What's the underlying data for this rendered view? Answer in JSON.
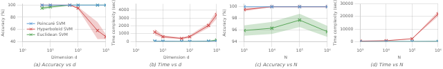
{
  "chart_data": [
    {
      "type": "line",
      "title": "(a) Accuracy vs d",
      "xlabel": "Dimension d",
      "ylabel": "Accuracy (%)",
      "x": [
        5,
        10,
        50,
        100,
        500,
        1000
      ],
      "series": [
        {
          "name": "Poincaré SVM",
          "color": "#5b9bd5",
          "values": [
            100,
            100,
            100,
            100,
            100,
            100
          ],
          "lo": [
            100,
            100,
            100,
            100,
            100,
            100
          ],
          "hi": [
            100,
            100,
            100,
            100,
            100,
            100
          ]
        },
        {
          "name": "Hyperboloid SVM",
          "color": "#d05050",
          "values": [
            100,
            100,
            100,
            95,
            58,
            48
          ],
          "lo": [
            100,
            100,
            100,
            93,
            44,
            44
          ],
          "hi": [
            100,
            100,
            100,
            97,
            72,
            52
          ]
        },
        {
          "name": "Euclidean SVM",
          "color": "#59a659",
          "values": [
            95,
            97,
            100,
            100,
            100,
            100
          ],
          "lo": [
            92,
            95,
            99,
            99.5,
            99.5,
            99.5
          ],
          "hi": [
            98,
            99,
            100.5,
            100.5,
            100.5,
            100.5
          ]
        }
      ],
      "xlim": [
        1,
        1000
      ],
      "xticks": [
        {
          "value": 1,
          "label": "10⁰"
        },
        {
          "value": 10,
          "label": "10¹"
        },
        {
          "value": 100,
          "label": "10²"
        },
        {
          "value": 1000,
          "label": "10³"
        }
      ],
      "ylim": [
        40,
        102
      ],
      "yticks": [
        40,
        60,
        80,
        100
      ],
      "log": "x",
      "grid": true,
      "marker": "x",
      "legend": "lower left"
    },
    {
      "type": "line",
      "title": "(b) Time vs d",
      "xlabel": "Dimension d",
      "ylabel": "Time complexity (sec)",
      "x": [
        5,
        10,
        50,
        100,
        500,
        1000
      ],
      "series": [
        {
          "name": "Poincaré SVM",
          "color": "#5b9bd5",
          "values": [
            50,
            40,
            25,
            25,
            30,
            30
          ],
          "lo": [
            20,
            15,
            10,
            10,
            15,
            15
          ],
          "hi": [
            80,
            65,
            40,
            40,
            45,
            45
          ]
        },
        {
          "name": "Hyperboloid SVM",
          "color": "#d05050",
          "values": [
            1200,
            620,
            400,
            620,
            2050,
            3400
          ],
          "lo": [
            800,
            450,
            300,
            450,
            1750,
            2900
          ],
          "hi": [
            1600,
            800,
            510,
            800,
            2350,
            3900
          ]
        },
        {
          "name": "Euclidean SVM",
          "color": "#59a659",
          "values": [
            15,
            8,
            5,
            5,
            40,
            200
          ],
          "lo": [
            5,
            3,
            2,
            2,
            20,
            100
          ],
          "hi": [
            25,
            13,
            8,
            8,
            60,
            300
          ]
        }
      ],
      "xlim": [
        1,
        1000
      ],
      "xticks": [
        {
          "value": 1,
          "label": "10⁰"
        },
        {
          "value": 10,
          "label": "10¹"
        },
        {
          "value": 100,
          "label": "10²"
        },
        {
          "value": 1000,
          "label": "10³"
        }
      ],
      "ylim": [
        0,
        4800
      ],
      "yticks": [
        0,
        1000,
        2000,
        3000,
        4000
      ],
      "log": "x",
      "grid": true,
      "marker": "x"
    },
    {
      "type": "line",
      "title": "(c) Accuracy vs N",
      "xlabel": "N",
      "ylabel": "Accuracy (%)",
      "x": [
        1000,
        10000,
        100000,
        1000000
      ],
      "series": [
        {
          "name": "Poincaré SVM",
          "color": "#5b9bd5",
          "values": [
            100,
            100,
            100,
            100
          ],
          "lo": [
            100,
            100,
            100,
            100
          ],
          "hi": [
            100,
            100,
            100,
            100
          ]
        },
        {
          "name": "Hyperboloid SVM",
          "color": "#d05050",
          "values": [
            99.5,
            100,
            100,
            100
          ],
          "lo": [
            99.2,
            100,
            100,
            100
          ],
          "hi": [
            99.8,
            100,
            100,
            100
          ]
        },
        {
          "name": "Euclidean SVM",
          "color": "#59a659",
          "values": [
            95.9,
            96.3,
            97.7,
            95.7
          ],
          "lo": [
            95.0,
            95.3,
            96.5,
            94.8
          ],
          "hi": [
            96.8,
            97.4,
            98.8,
            96.7
          ]
        }
      ],
      "xlim": [
        1000,
        1000000
      ],
      "xticks": [
        {
          "value": 1000,
          "label": "10³"
        },
        {
          "value": 10000,
          "label": "10⁴"
        },
        {
          "value": 100000,
          "label": "10⁵"
        },
        {
          "value": 1000000,
          "label": "10⁶"
        }
      ],
      "ylim": [
        94,
        100.5
      ],
      "yticks": [
        94,
        96,
        98,
        100
      ],
      "log": "x",
      "grid": true,
      "marker": "x"
    },
    {
      "type": "line",
      "title": "(d) Time vs N",
      "xlabel": "N",
      "ylabel": "Time complexity (sec)",
      "x": [
        1000,
        10000,
        100000,
        1000000
      ],
      "series": [
        {
          "name": "Poincaré SVM",
          "color": "#5b9bd5",
          "values": [
            25,
            25,
            30,
            60
          ],
          "lo": [
            10,
            10,
            15,
            30
          ],
          "hi": [
            40,
            40,
            45,
            90
          ]
        },
        {
          "name": "Hyperboloid SVM",
          "color": "#d05050",
          "values": [
            350,
            700,
            2200,
            22000
          ],
          "lo": [
            250,
            600,
            2000,
            20000
          ],
          "hi": [
            450,
            800,
            2400,
            24000
          ]
        },
        {
          "name": "Euclidean SVM",
          "color": "#59a659",
          "values": [
            8,
            8,
            10,
            150
          ],
          "lo": [
            3,
            3,
            5,
            80
          ],
          "hi": [
            13,
            13,
            15,
            220
          ]
        }
      ],
      "xlim": [
        1000,
        1000000
      ],
      "xticks": [
        {
          "value": 1000,
          "label": "10³"
        },
        {
          "value": 10000,
          "label": "10⁴"
        },
        {
          "value": 100000,
          "label": "10⁵"
        },
        {
          "value": 1000000,
          "label": "10⁶"
        }
      ],
      "ylim": [
        0,
        30000
      ],
      "yticks": [
        0,
        10000,
        20000,
        30000
      ],
      "log": "x",
      "grid": true,
      "marker": "x"
    }
  ]
}
